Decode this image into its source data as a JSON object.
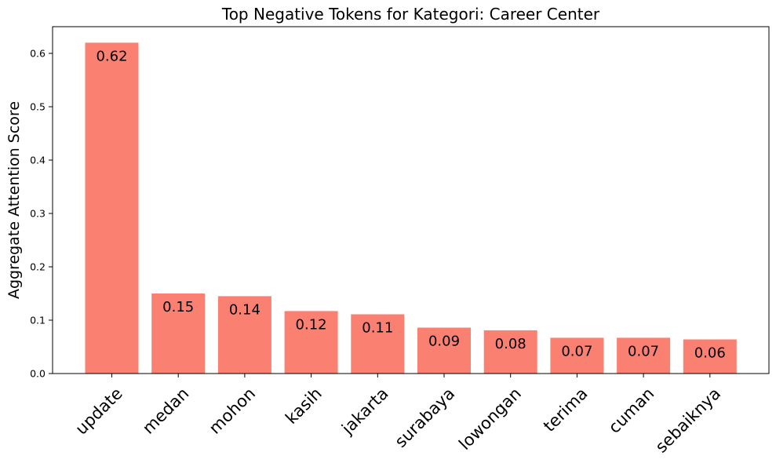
{
  "chart_data": {
    "type": "bar",
    "title": "Top Negative Tokens for Kategori: Career Center",
    "xlabel": "",
    "ylabel": "Aggregate Attention Score",
    "categories": [
      "update",
      "medan",
      "mohon",
      "kasih",
      "jakarta",
      "surabaya",
      "lowongan",
      "terima",
      "cuman",
      "sebaiknya"
    ],
    "values": [
      0.62,
      0.15,
      0.145,
      0.117,
      0.111,
      0.086,
      0.081,
      0.067,
      0.067,
      0.064
    ],
    "data_labels": [
      "0.62",
      "0.15",
      "0.14",
      "0.12",
      "0.11",
      "0.09",
      "0.08",
      "0.07",
      "0.07",
      "0.06"
    ],
    "ylim": [
      0,
      0.65
    ],
    "yticks": [
      0.0,
      0.1,
      0.2,
      0.3,
      0.4,
      0.5,
      0.6
    ],
    "ytick_labels": [
      "0.0",
      "0.1",
      "0.2",
      "0.3",
      "0.4",
      "0.5",
      "0.6"
    ],
    "bar_color": "#FA8072",
    "grid": false,
    "legend": "none",
    "xtick_rotation": 45
  }
}
